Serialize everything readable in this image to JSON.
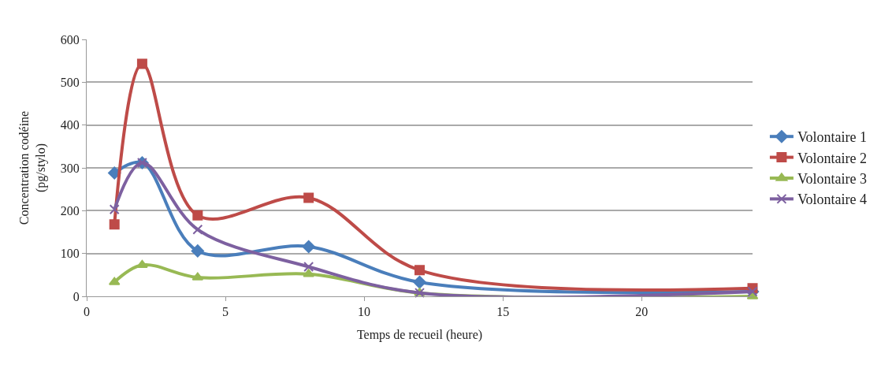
{
  "chart_data": {
    "type": "line",
    "xlabel": "Temps de recueil (heure)",
    "ylabel": "Concentration codéine\n(pg/stylo)",
    "x": [
      1,
      2,
      4,
      8,
      12,
      24
    ],
    "series": [
      {
        "name": "Volontaire 1",
        "color": "#4a7ebb",
        "marker": "diamond",
        "values": [
          288,
          312,
          106,
          116,
          33,
          11
        ]
      },
      {
        "name": "Volontaire 2",
        "color": "#be4b48",
        "marker": "square",
        "values": [
          168,
          543,
          189,
          230,
          61,
          19
        ]
      },
      {
        "name": "Volontaire 3",
        "color": "#98b954",
        "marker": "triangle",
        "values": [
          33,
          73,
          44,
          52,
          8,
          0
        ]
      },
      {
        "name": "Volontaire 4",
        "color": "#7d60a0",
        "marker": "cross",
        "values": [
          203,
          312,
          156,
          69,
          8,
          11
        ]
      }
    ],
    "xlim": [
      0,
      24
    ],
    "xticks": [
      0,
      5,
      10,
      15,
      20
    ],
    "ylim": [
      0,
      600
    ],
    "yticks": [
      0,
      100,
      200,
      300,
      400,
      500,
      600
    ],
    "grid": "y",
    "legend": "right"
  }
}
